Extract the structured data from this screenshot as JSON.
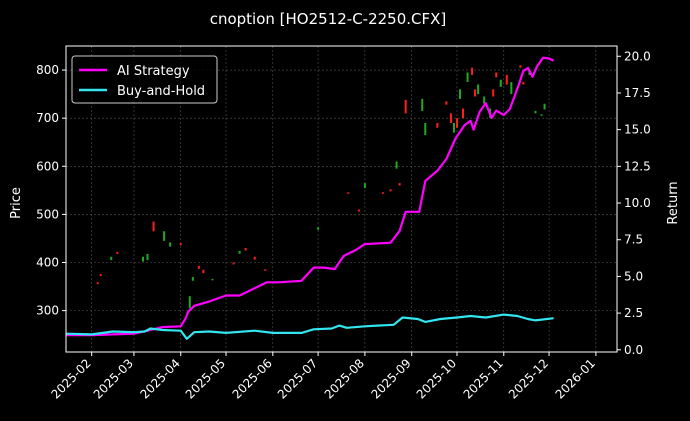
{
  "chart_data": {
    "type": "line",
    "title": "cnoption [HO2512-C-2250.CFX]",
    "xlabel": "",
    "ylabel_left": "Price",
    "ylabel_right": "Return",
    "x_ticks": [
      "2025-02",
      "2025-03",
      "2025-04",
      "2025-05",
      "2025-06",
      "2025-07",
      "2025-08",
      "2025-09",
      "2025-10",
      "2025-11",
      "2025-12",
      "2026-01"
    ],
    "x_range": [
      "2025-01-15",
      "2026-01-15"
    ],
    "left_ticks": [
      300,
      400,
      500,
      600,
      700,
      800
    ],
    "left_range": [
      214,
      850
    ],
    "right_ticks": [
      "0.0",
      "2.5",
      "5.0",
      "7.5",
      "10.0",
      "12.5",
      "15.0",
      "17.5",
      "20.0"
    ],
    "right_range": [
      -0.15,
      20.7
    ],
    "grid": true,
    "legend_position": "top-left",
    "colors": {
      "background": "#000000",
      "ai": "#ff00ff",
      "bh": "#33e5ee",
      "up": "#1faa1f",
      "down": "#ff1f1f",
      "grid": "#555555"
    },
    "series": [
      {
        "name": "AI Strategy",
        "axis": "right",
        "points": [
          [
            "2025-01-15",
            1.0
          ],
          [
            "2025-02-01",
            1.0
          ],
          [
            "2025-02-15",
            1.05
          ],
          [
            "2025-03-01",
            1.1
          ],
          [
            "2025-03-10",
            1.3
          ],
          [
            "2025-03-20",
            1.55
          ],
          [
            "2025-04-01",
            1.6
          ],
          [
            "2025-04-04",
            2.1
          ],
          [
            "2025-04-06",
            2.6
          ],
          [
            "2025-04-10",
            3.0
          ],
          [
            "2025-04-20",
            3.3
          ],
          [
            "2025-05-01",
            3.7
          ],
          [
            "2025-05-10",
            3.7
          ],
          [
            "2025-05-20",
            4.2
          ],
          [
            "2025-05-28",
            4.6
          ],
          [
            "2025-06-05",
            4.6
          ],
          [
            "2025-06-20",
            4.7
          ],
          [
            "2025-06-28",
            5.6
          ],
          [
            "2025-07-05",
            5.6
          ],
          [
            "2025-07-12",
            5.5
          ],
          [
            "2025-07-18",
            6.4
          ],
          [
            "2025-07-26",
            6.8
          ],
          [
            "2025-08-01",
            7.2
          ],
          [
            "2025-08-18",
            7.3
          ],
          [
            "2025-08-24",
            8.1
          ],
          [
            "2025-08-28",
            9.4
          ],
          [
            "2025-09-06",
            9.4
          ],
          [
            "2025-09-10",
            11.5
          ],
          [
            "2025-09-18",
            12.2
          ],
          [
            "2025-09-24",
            13.0
          ],
          [
            "2025-09-30",
            14.4
          ],
          [
            "2025-10-06",
            15.3
          ],
          [
            "2025-10-10",
            15.6
          ],
          [
            "2025-10-12",
            15.0
          ],
          [
            "2025-10-16",
            16.2
          ],
          [
            "2025-10-20",
            16.8
          ],
          [
            "2025-10-24",
            15.8
          ],
          [
            "2025-10-27",
            16.3
          ],
          [
            "2025-11-01",
            16.0
          ],
          [
            "2025-11-05",
            16.4
          ],
          [
            "2025-11-10",
            17.8
          ],
          [
            "2025-11-14",
            19.0
          ],
          [
            "2025-11-17",
            19.2
          ],
          [
            "2025-11-20",
            18.6
          ],
          [
            "2025-11-23",
            19.3
          ],
          [
            "2025-11-27",
            19.9
          ],
          [
            "2025-12-01",
            19.85
          ],
          [
            "2025-12-04",
            19.7
          ]
        ]
      },
      {
        "name": "Buy-and-Hold",
        "axis": "right",
        "points": [
          [
            "2025-01-15",
            1.1
          ],
          [
            "2025-02-01",
            1.05
          ],
          [
            "2025-02-15",
            1.25
          ],
          [
            "2025-03-01",
            1.2
          ],
          [
            "2025-03-08",
            1.25
          ],
          [
            "2025-03-12",
            1.45
          ],
          [
            "2025-03-20",
            1.35
          ],
          [
            "2025-04-01",
            1.3
          ],
          [
            "2025-04-05",
            0.75
          ],
          [
            "2025-04-10",
            1.2
          ],
          [
            "2025-04-20",
            1.25
          ],
          [
            "2025-05-01",
            1.15
          ],
          [
            "2025-05-20",
            1.3
          ],
          [
            "2025-06-01",
            1.15
          ],
          [
            "2025-06-20",
            1.15
          ],
          [
            "2025-06-28",
            1.4
          ],
          [
            "2025-07-10",
            1.45
          ],
          [
            "2025-07-15",
            1.65
          ],
          [
            "2025-07-20",
            1.5
          ],
          [
            "2025-08-01",
            1.6
          ],
          [
            "2025-08-20",
            1.7
          ],
          [
            "2025-08-26",
            2.2
          ],
          [
            "2025-09-05",
            2.1
          ],
          [
            "2025-09-10",
            1.9
          ],
          [
            "2025-09-20",
            2.1
          ],
          [
            "2025-10-01",
            2.2
          ],
          [
            "2025-10-10",
            2.3
          ],
          [
            "2025-10-20",
            2.2
          ],
          [
            "2025-11-01",
            2.4
          ],
          [
            "2025-11-10",
            2.3
          ],
          [
            "2025-11-17",
            2.1
          ],
          [
            "2025-11-22",
            2.0
          ],
          [
            "2025-12-04",
            2.15
          ]
        ]
      }
    ],
    "candles": [
      {
        "date": "2025-02-05",
        "open": 355,
        "close": 359,
        "dir": "down"
      },
      {
        "date": "2025-02-07",
        "open": 372,
        "close": 376,
        "dir": "down"
      },
      {
        "date": "2025-02-14",
        "open": 405,
        "close": 412,
        "dir": "up"
      },
      {
        "date": "2025-02-18",
        "open": 418,
        "close": 422,
        "dir": "down"
      },
      {
        "date": "2025-03-07",
        "open": 402,
        "close": 412,
        "dir": "up"
      },
      {
        "date": "2025-03-10",
        "open": 405,
        "close": 418,
        "dir": "up"
      },
      {
        "date": "2025-03-14",
        "open": 485,
        "close": 465,
        "dir": "down"
      },
      {
        "date": "2025-03-21",
        "open": 445,
        "close": 465,
        "dir": "up"
      },
      {
        "date": "2025-03-25",
        "open": 433,
        "close": 442,
        "dir": "up"
      },
      {
        "date": "2025-04-01",
        "open": 440,
        "close": 436,
        "dir": "down"
      },
      {
        "date": "2025-04-07",
        "open": 305,
        "close": 330,
        "dir": "up"
      },
      {
        "date": "2025-04-09",
        "open": 362,
        "close": 370,
        "dir": "up"
      },
      {
        "date": "2025-04-13",
        "open": 393,
        "close": 387,
        "dir": "down"
      },
      {
        "date": "2025-04-16",
        "open": 385,
        "close": 378,
        "dir": "down"
      },
      {
        "date": "2025-04-22",
        "open": 363,
        "close": 366,
        "dir": "up"
      },
      {
        "date": "2025-05-06",
        "open": 400,
        "close": 396,
        "dir": "down"
      },
      {
        "date": "2025-05-10",
        "open": 418,
        "close": 424,
        "dir": "up"
      },
      {
        "date": "2025-05-14",
        "open": 430,
        "close": 425,
        "dir": "down"
      },
      {
        "date": "2025-05-20",
        "open": 412,
        "close": 406,
        "dir": "down"
      },
      {
        "date": "2025-05-27",
        "open": 386,
        "close": 383,
        "dir": "down"
      },
      {
        "date": "2025-07-01",
        "open": 468,
        "close": 473,
        "dir": "up"
      },
      {
        "date": "2025-07-21",
        "open": 543,
        "close": 546,
        "dir": "down"
      },
      {
        "date": "2025-07-28",
        "open": 510,
        "close": 506,
        "dir": "down"
      },
      {
        "date": "2025-08-01",
        "open": 555,
        "close": 565,
        "dir": "up"
      },
      {
        "date": "2025-08-13",
        "open": 546,
        "close": 543,
        "dir": "down"
      },
      {
        "date": "2025-08-18",
        "open": 552,
        "close": 548,
        "dir": "down"
      },
      {
        "date": "2025-08-22",
        "open": 595,
        "close": 610,
        "dir": "up"
      },
      {
        "date": "2025-08-24",
        "open": 565,
        "close": 560,
        "dir": "down"
      },
      {
        "date": "2025-08-28",
        "open": 710,
        "close": 738,
        "dir": "down"
      },
      {
        "date": "2025-09-08",
        "open": 715,
        "close": 740,
        "dir": "up"
      },
      {
        "date": "2025-09-10",
        "open": 665,
        "close": 690,
        "dir": "up"
      },
      {
        "date": "2025-09-18",
        "open": 690,
        "close": 680,
        "dir": "down"
      },
      {
        "date": "2025-09-24",
        "open": 735,
        "close": 728,
        "dir": "down"
      },
      {
        "date": "2025-09-27",
        "open": 710,
        "close": 690,
        "dir": "down"
      },
      {
        "date": "2025-09-29",
        "open": 670,
        "close": 690,
        "dir": "up"
      },
      {
        "date": "2025-10-01",
        "open": 700,
        "close": 680,
        "dir": "down"
      },
      {
        "date": "2025-10-03",
        "open": 740,
        "close": 760,
        "dir": "up"
      },
      {
        "date": "2025-10-05",
        "open": 720,
        "close": 700,
        "dir": "down"
      },
      {
        "date": "2025-10-08",
        "open": 775,
        "close": 795,
        "dir": "up"
      },
      {
        "date": "2025-10-11",
        "open": 805,
        "close": 790,
        "dir": "down"
      },
      {
        "date": "2025-10-13",
        "open": 745,
        "close": 760,
        "dir": "down"
      },
      {
        "date": "2025-10-15",
        "open": 750,
        "close": 770,
        "dir": "up"
      },
      {
        "date": "2025-10-19",
        "open": 730,
        "close": 745,
        "dir": "up"
      },
      {
        "date": "2025-10-23",
        "open": 700,
        "close": 720,
        "dir": "up"
      },
      {
        "date": "2025-10-25",
        "open": 760,
        "close": 745,
        "dir": "down"
      },
      {
        "date": "2025-10-27",
        "open": 795,
        "close": 785,
        "dir": "down"
      },
      {
        "date": "2025-10-30",
        "open": 765,
        "close": 780,
        "dir": "up"
      },
      {
        "date": "2025-11-03",
        "open": 770,
        "close": 790,
        "dir": "down"
      },
      {
        "date": "2025-11-06",
        "open": 750,
        "close": 775,
        "dir": "up"
      },
      {
        "date": "2025-11-12",
        "open": 810,
        "close": 805,
        "dir": "down"
      },
      {
        "date": "2025-11-14",
        "open": 775,
        "close": 770,
        "dir": "down"
      },
      {
        "date": "2025-11-18",
        "open": 790,
        "close": 800,
        "dir": "up"
      },
      {
        "date": "2025-11-22",
        "open": 710,
        "close": 715,
        "dir": "up"
      },
      {
        "date": "2025-11-26",
        "open": 705,
        "close": 708,
        "dir": "up"
      },
      {
        "date": "2025-11-28",
        "open": 718,
        "close": 730,
        "dir": "up"
      }
    ]
  }
}
